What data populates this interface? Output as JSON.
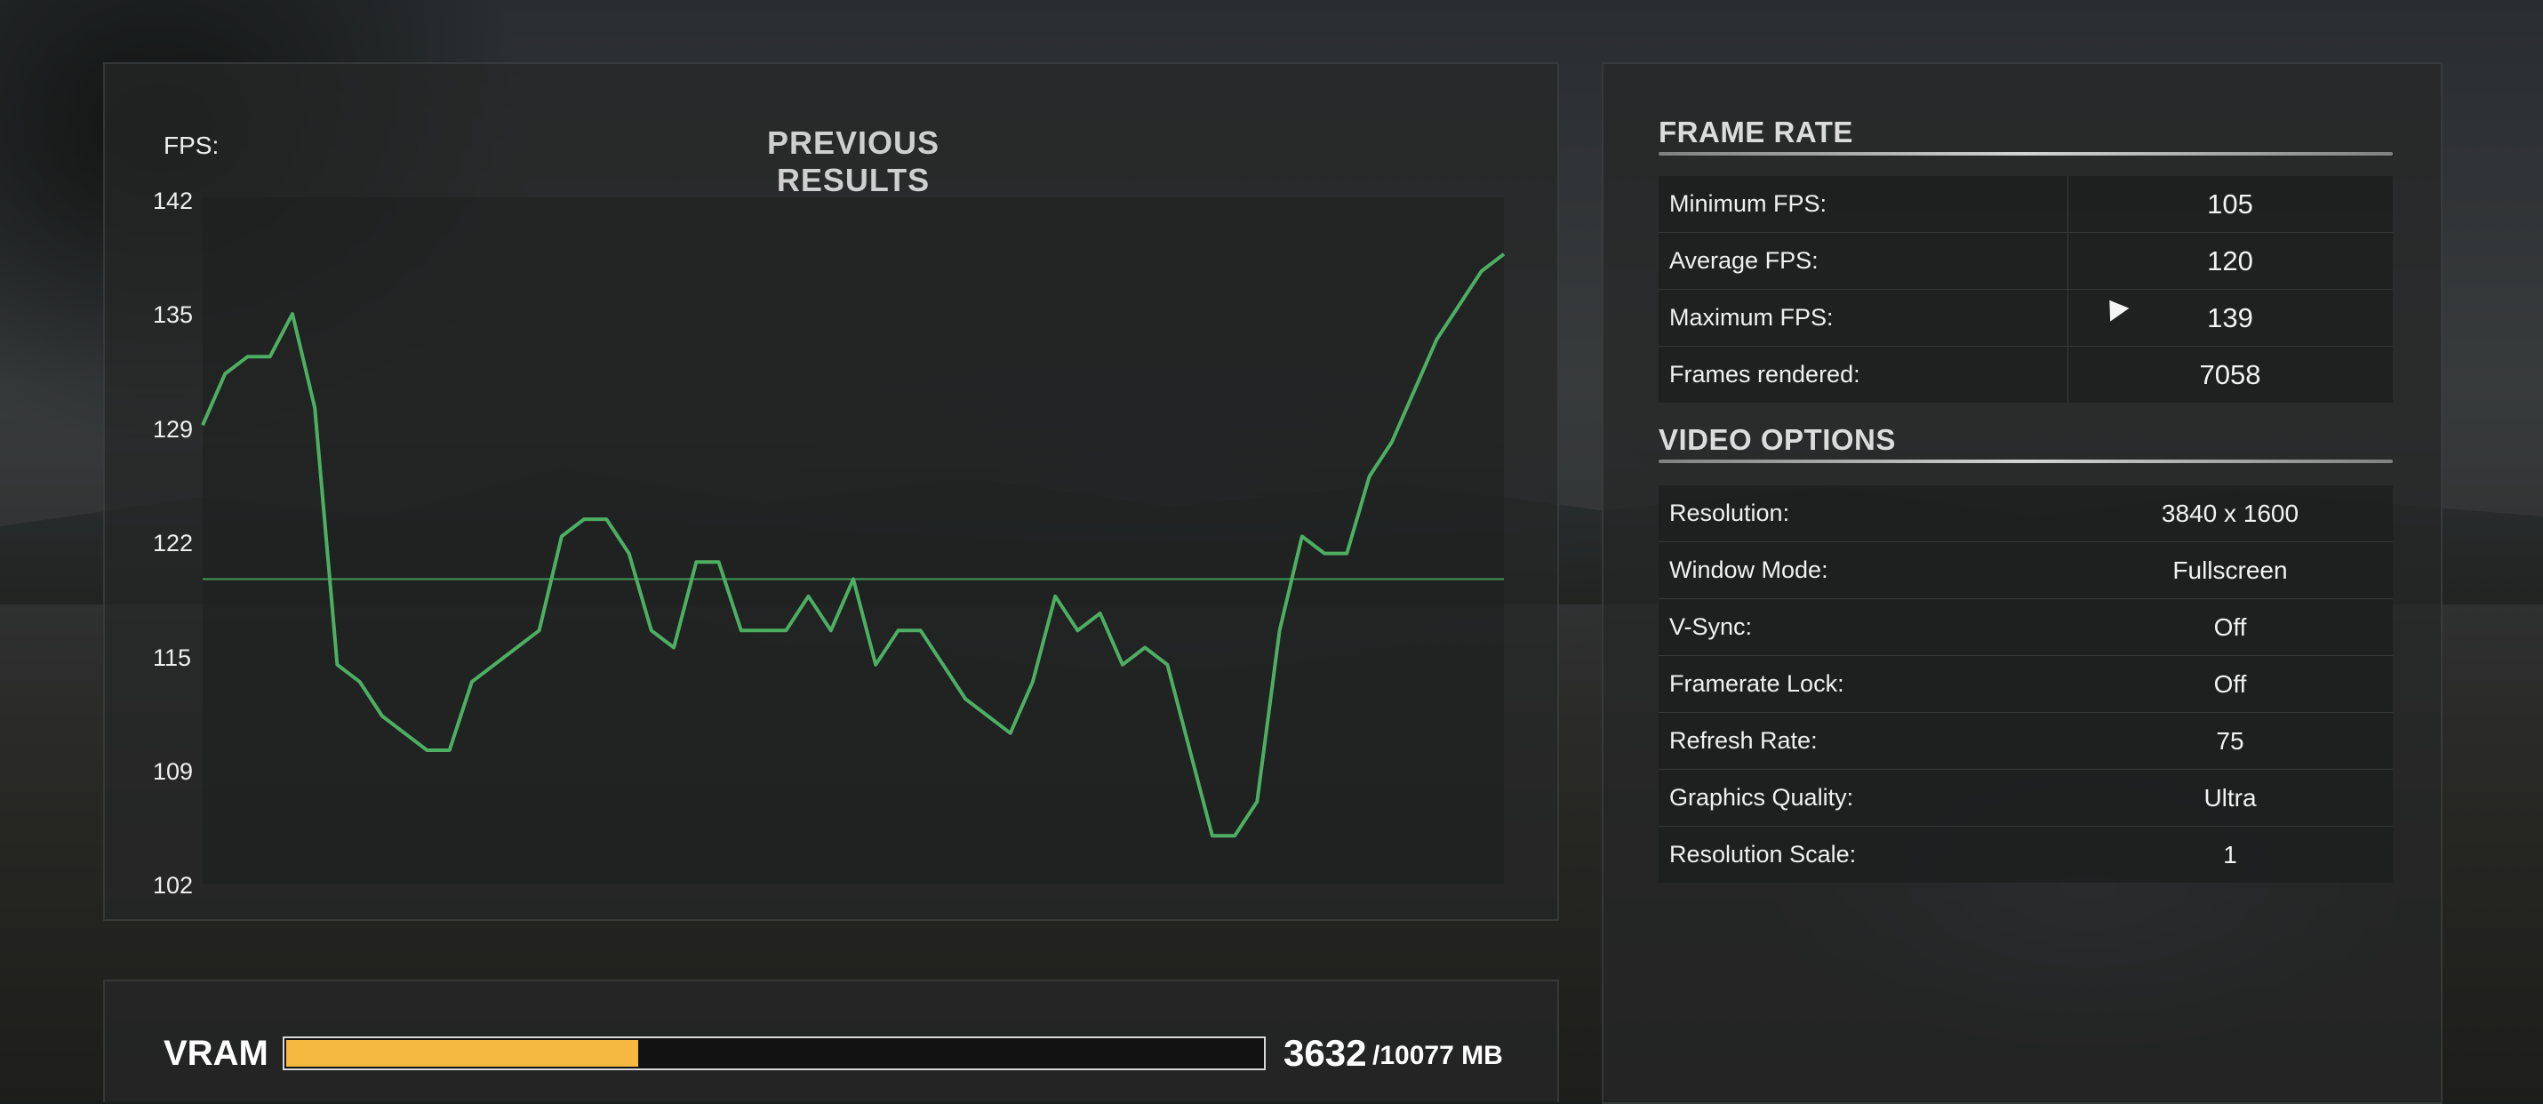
{
  "chart_panel": {
    "title": "PREVIOUS RESULTS",
    "y_axis_label": "FPS:"
  },
  "chart_data": {
    "type": "line",
    "title": "PREVIOUS RESULTS",
    "ylabel": "FPS:",
    "yticks": [
      "142",
      "135",
      "129",
      "122",
      "115",
      "109",
      "102"
    ],
    "ylim": [
      102,
      142
    ],
    "average_line": 120,
    "line_color": "#4caf62",
    "series": [
      {
        "values": [
          129,
          132,
          133,
          133,
          135.5,
          130,
          115,
          114,
          112,
          111,
          110,
          110,
          114,
          115,
          116,
          117,
          122.5,
          123.5,
          123.5,
          121.5,
          117,
          116,
          121,
          121,
          117,
          117,
          117,
          119,
          117,
          120,
          115,
          117,
          117,
          115,
          113,
          112,
          111,
          114,
          119,
          117,
          118,
          115,
          116,
          115,
          110,
          105,
          105,
          107,
          117,
          122.5,
          121.5,
          121.5,
          126,
          128,
          131,
          134,
          136,
          138,
          139
        ]
      }
    ]
  },
  "frame_rate": {
    "title": "FRAME RATE",
    "rows": [
      {
        "label": "Minimum FPS:",
        "value": "105"
      },
      {
        "label": "Average FPS:",
        "value": "120"
      },
      {
        "label": "Maximum FPS:",
        "value": "139"
      },
      {
        "label": "Frames rendered:",
        "value": "7058"
      }
    ]
  },
  "video_options": {
    "title": "VIDEO OPTIONS",
    "rows": [
      {
        "label": "Resolution:",
        "value": "3840 x 1600"
      },
      {
        "label": "Window Mode:",
        "value": "Fullscreen"
      },
      {
        "label": "V-Sync:",
        "value": "Off"
      },
      {
        "label": "Framerate Lock:",
        "value": "Off"
      },
      {
        "label": "Refresh Rate:",
        "value": "75"
      },
      {
        "label": "Graphics Quality:",
        "value": "Ultra"
      },
      {
        "label": "Resolution Scale:",
        "value": "1"
      }
    ]
  },
  "vram": {
    "label": "VRAM",
    "used": "3632",
    "total": "/10077 MB",
    "fraction": 0.3604,
    "fill_color": "#f5b942"
  }
}
